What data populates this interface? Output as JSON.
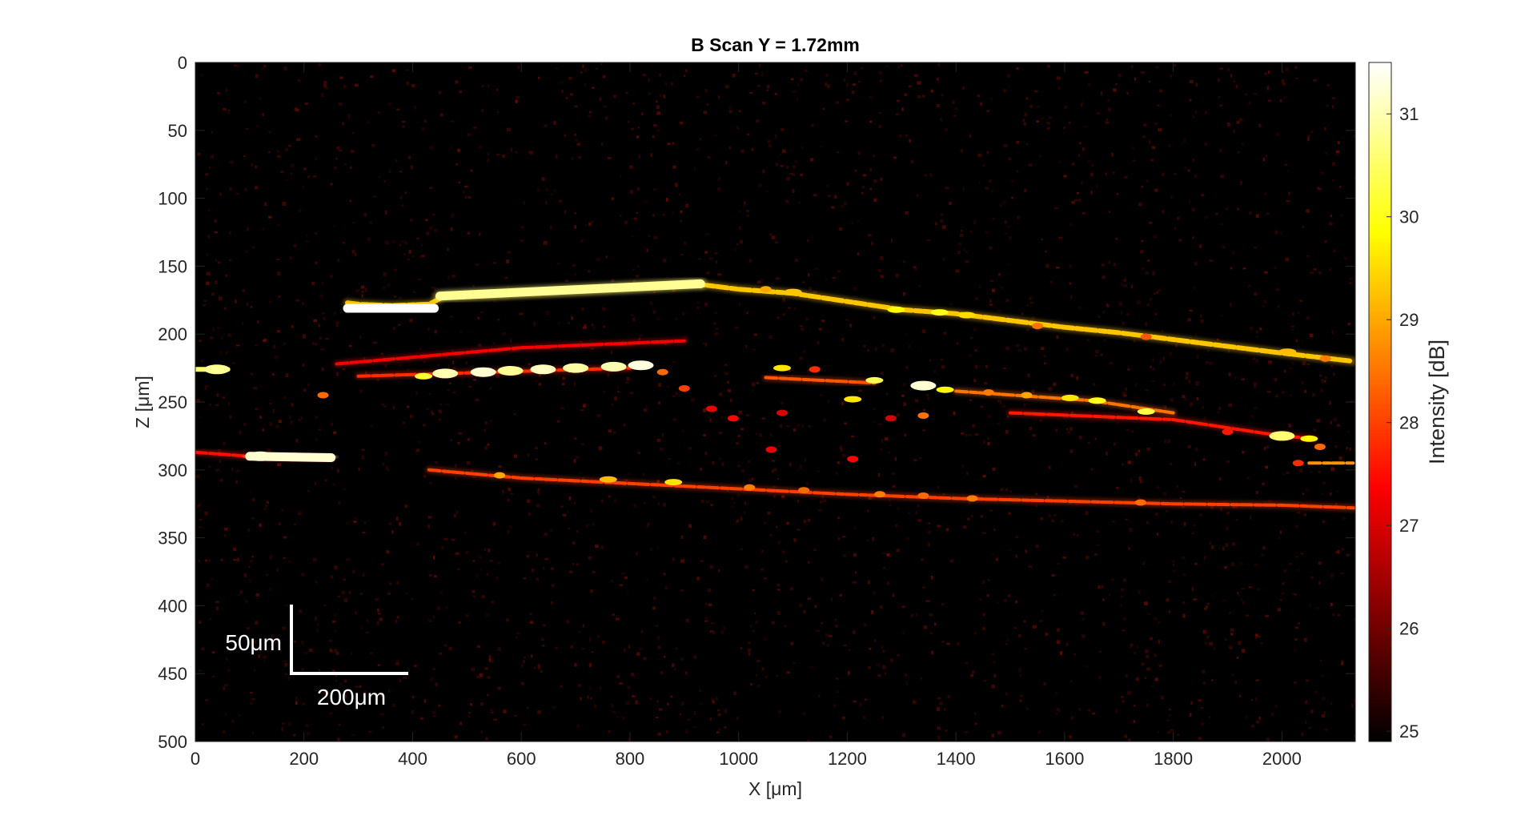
{
  "chart_data": {
    "type": "heatmap",
    "title": "B Scan Y = 1.72mm",
    "xlabel": "X [μm]",
    "ylabel": "Z [μm]",
    "xlim": [
      0,
      2135
    ],
    "ylim": [
      500,
      0
    ],
    "x_ticks": [
      0,
      200,
      400,
      600,
      800,
      1000,
      1200,
      1400,
      1600,
      1800,
      2000
    ],
    "y_ticks": [
      0,
      50,
      100,
      150,
      200,
      250,
      300,
      350,
      400,
      450,
      500
    ],
    "colormap": "hot",
    "grid": false,
    "colorbar": {
      "label": "Intensity [dB]",
      "range": [
        24.9,
        31.5
      ],
      "ticks": [
        25,
        26,
        27,
        28,
        29,
        30,
        31
      ]
    },
    "scale_bar": {
      "vertical_label": "50μm",
      "horizontal_label": "200μm",
      "vertical_length_um": 50,
      "horizontal_length_um": 200
    },
    "layers": [
      {
        "points": [
          [
            280,
            177
          ],
          [
            300,
            178
          ],
          [
            360,
            179
          ],
          [
            430,
            178
          ],
          [
            460,
            172
          ],
          [
            600,
            170
          ],
          [
            800,
            166
          ],
          [
            920,
            163
          ],
          [
            1000,
            167
          ],
          [
            1100,
            170
          ],
          [
            1200,
            176
          ],
          [
            1300,
            182
          ],
          [
            1400,
            185
          ],
          [
            1500,
            190
          ],
          [
            1600,
            195
          ],
          [
            1700,
            199
          ],
          [
            1800,
            204
          ],
          [
            1900,
            209
          ],
          [
            2000,
            214
          ],
          [
            2130,
            220
          ]
        ],
        "intensity": 29.3
      },
      {
        "points": [
          [
            280,
            181
          ],
          [
            440,
            181
          ]
        ],
        "intensity": 31.5
      },
      {
        "points": [
          [
            450,
            172
          ],
          [
            930,
            163
          ]
        ],
        "intensity": 30.8
      },
      {
        "points": [
          [
            0,
            226
          ],
          [
            60,
            226
          ]
        ],
        "intensity": 30.5
      },
      {
        "points": [
          [
            260,
            222
          ],
          [
            600,
            210
          ],
          [
            900,
            205
          ]
        ],
        "intensity": 27.3
      },
      {
        "points": [
          [
            300,
            231
          ],
          [
            800,
            225
          ]
        ],
        "intensity": 27.8
      },
      {
        "points": [
          [
            1050,
            232
          ],
          [
            1250,
            236
          ]
        ],
        "intensity": 28.2
      },
      {
        "points": [
          [
            1400,
            242
          ],
          [
            1650,
            249
          ],
          [
            1800,
            258
          ]
        ],
        "intensity": 28.5
      },
      {
        "points": [
          [
            0,
            287
          ],
          [
            100,
            290
          ],
          [
            250,
            292
          ]
        ],
        "intensity": 27.5
      },
      {
        "points": [
          [
            100,
            290
          ],
          [
            250,
            291
          ]
        ],
        "intensity": 31.2
      },
      {
        "points": [
          [
            430,
            300
          ],
          [
            600,
            306
          ],
          [
            800,
            310
          ],
          [
            1000,
            314
          ],
          [
            1200,
            318
          ],
          [
            1400,
            321
          ],
          [
            1600,
            323
          ],
          [
            1800,
            325
          ],
          [
            2000,
            326
          ],
          [
            2135,
            328
          ]
        ],
        "intensity": 28.0
      },
      {
        "points": [
          [
            1500,
            258
          ],
          [
            1800,
            263
          ],
          [
            2000,
            275
          ],
          [
            2060,
            277
          ]
        ],
        "intensity": 27.6
      },
      {
        "points": [
          [
            2050,
            295
          ],
          [
            2135,
            295
          ]
        ],
        "intensity": 28.8
      }
    ],
    "spots": [
      {
        "x": 420,
        "z": 231,
        "intensity": 30.2
      },
      {
        "x": 460,
        "z": 229,
        "intensity": 31.0
      },
      {
        "x": 530,
        "z": 228,
        "intensity": 31.2
      },
      {
        "x": 580,
        "z": 227,
        "intensity": 30.8
      },
      {
        "x": 640,
        "z": 226,
        "intensity": 31.1
      },
      {
        "x": 700,
        "z": 225,
        "intensity": 30.9
      },
      {
        "x": 770,
        "z": 224,
        "intensity": 31.0
      },
      {
        "x": 820,
        "z": 223,
        "intensity": 31.3
      },
      {
        "x": 860,
        "z": 228,
        "intensity": 28.4
      },
      {
        "x": 900,
        "z": 240,
        "intensity": 28.0
      },
      {
        "x": 1080,
        "z": 225,
        "intensity": 29.6
      },
      {
        "x": 1140,
        "z": 226,
        "intensity": 27.8
      },
      {
        "x": 1250,
        "z": 234,
        "intensity": 30.4
      },
      {
        "x": 1340,
        "z": 238,
        "intensity": 31.2
      },
      {
        "x": 1380,
        "z": 241,
        "intensity": 29.8
      },
      {
        "x": 1210,
        "z": 248,
        "intensity": 29.6
      },
      {
        "x": 1460,
        "z": 243,
        "intensity": 28.6
      },
      {
        "x": 1530,
        "z": 245,
        "intensity": 29.0
      },
      {
        "x": 1610,
        "z": 247,
        "intensity": 29.6
      },
      {
        "x": 1660,
        "z": 249,
        "intensity": 30.0
      },
      {
        "x": 1750,
        "z": 257,
        "intensity": 30.3
      },
      {
        "x": 1340,
        "z": 260,
        "intensity": 28.5
      },
      {
        "x": 2000,
        "z": 275,
        "intensity": 30.6
      },
      {
        "x": 2050,
        "z": 277,
        "intensity": 29.8
      },
      {
        "x": 1900,
        "z": 272,
        "intensity": 27.6
      },
      {
        "x": 2070,
        "z": 283,
        "intensity": 28.4
      },
      {
        "x": 2030,
        "z": 295,
        "intensity": 27.8
      },
      {
        "x": 1290,
        "z": 182,
        "intensity": 29.8
      },
      {
        "x": 1370,
        "z": 184,
        "intensity": 30.0
      },
      {
        "x": 1420,
        "z": 186,
        "intensity": 29.5
      },
      {
        "x": 2010,
        "z": 213,
        "intensity": 29.2
      },
      {
        "x": 235,
        "z": 245,
        "intensity": 28.4
      },
      {
        "x": 560,
        "z": 304,
        "intensity": 29.0
      },
      {
        "x": 760,
        "z": 307,
        "intensity": 29.2
      },
      {
        "x": 880,
        "z": 309,
        "intensity": 29.6
      },
      {
        "x": 1020,
        "z": 313,
        "intensity": 28.6
      },
      {
        "x": 1120,
        "z": 315,
        "intensity": 28.4
      },
      {
        "x": 1260,
        "z": 318,
        "intensity": 28.6
      },
      {
        "x": 1340,
        "z": 319,
        "intensity": 28.4
      },
      {
        "x": 1430,
        "z": 321,
        "intensity": 28.6
      },
      {
        "x": 1740,
        "z": 324,
        "intensity": 28.4
      },
      {
        "x": 120,
        "z": 290,
        "intensity": 31.2
      },
      {
        "x": 40,
        "z": 226,
        "intensity": 30.8
      },
      {
        "x": 1050,
        "z": 167,
        "intensity": 29.0
      },
      {
        "x": 1100,
        "z": 169,
        "intensity": 29.3
      },
      {
        "x": 1550,
        "z": 194,
        "intensity": 28.5
      },
      {
        "x": 1750,
        "z": 202,
        "intensity": 28.2
      },
      {
        "x": 2080,
        "z": 218,
        "intensity": 28.6
      },
      {
        "x": 1210,
        "z": 292,
        "intensity": 27.4
      },
      {
        "x": 1060,
        "z": 285,
        "intensity": 27.2
      },
      {
        "x": 990,
        "z": 262,
        "intensity": 27.4
      },
      {
        "x": 1080,
        "z": 258,
        "intensity": 27.0
      },
      {
        "x": 950,
        "z": 255,
        "intensity": 27.2
      },
      {
        "x": 1280,
        "z": 262,
        "intensity": 27.0
      }
    ]
  }
}
